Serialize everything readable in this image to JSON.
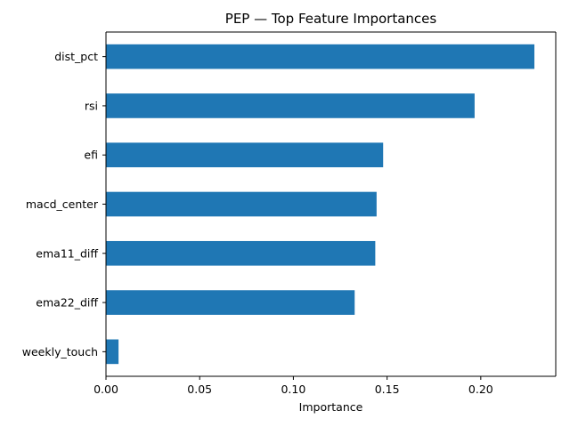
{
  "chart_data": {
    "type": "bar",
    "orientation": "horizontal",
    "title": "PEP — Top Feature Importances",
    "xlabel": "Importance",
    "ylabel": "",
    "categories": [
      "dist_pct",
      "rsi",
      "efi",
      "macd_center",
      "ema11_diff",
      "ema22_diff",
      "weekly_touch"
    ],
    "values": [
      0.2286,
      0.1967,
      0.1479,
      0.1444,
      0.1437,
      0.1327,
      0.0067
    ],
    "xlim": [
      0,
      0.24
    ],
    "xticks": [
      0.0,
      0.05,
      0.1,
      0.15,
      0.2
    ],
    "xtick_labels": [
      "0.00",
      "0.05",
      "0.10",
      "0.15",
      "0.20"
    ],
    "bar_color": "#1f77b4",
    "grid": false,
    "legend": "none"
  }
}
